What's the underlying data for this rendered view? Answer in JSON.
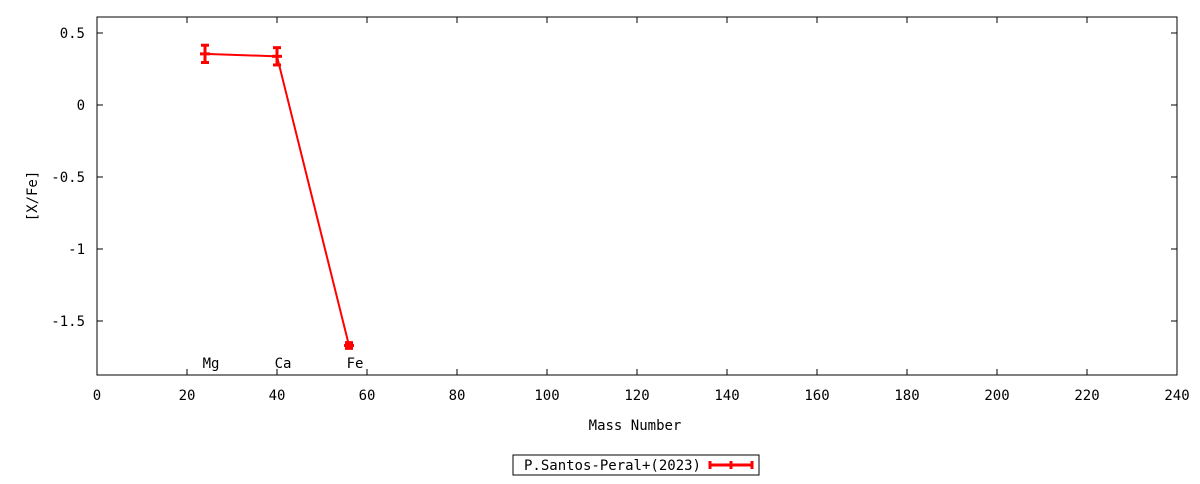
{
  "chart_data": {
    "type": "line",
    "title": "",
    "xlabel": "Mass Number",
    "ylabel": "[X/Fe]",
    "xlim": [
      0,
      240
    ],
    "ylim": [
      -1.875,
      0.611
    ],
    "xticks": [
      0,
      20,
      40,
      60,
      80,
      100,
      120,
      140,
      160,
      180,
      200,
      220,
      240
    ],
    "yticks": [
      0.5,
      0,
      -0.5,
      -1,
      -1.5
    ],
    "ytick_labels": [
      "0.5",
      "0",
      "-0.5",
      "-1",
      "-1.5"
    ],
    "grid": false,
    "legend_position": "bottom-center",
    "element_labels": [
      {
        "text": "Mg",
        "x": 24
      },
      {
        "text": "Ca",
        "x": 40
      },
      {
        "text": "Fe",
        "x": 56
      }
    ],
    "series": [
      {
        "name": "P.Santos-Peral+(2023)",
        "color": "#ff0000",
        "x": [
          24,
          40,
          56
        ],
        "y": [
          0.355,
          0.338,
          -1.67
        ],
        "yerr": [
          0.06,
          0.06,
          0.02
        ]
      }
    ]
  }
}
